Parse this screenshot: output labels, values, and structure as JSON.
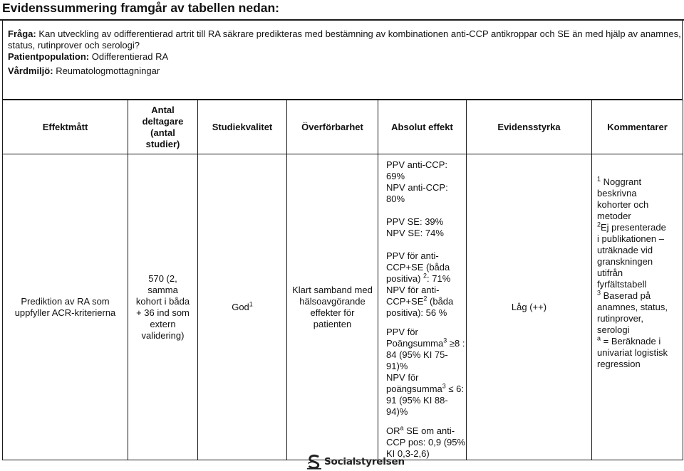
{
  "title": "Evidenssummering framgår av tabellen nedan:",
  "info": {
    "question_label": "Fråga:",
    "question_text": " Kan utveckling av odifferentierad artrit till RA säkrare predikteras med bestämning av kombinationen anti-CCP antikroppar och SE än med hjälp av anamnes, status, rutinprover och serologi?",
    "population_label": "Patientpopulation:",
    "population_value": " Odifferentierad RA",
    "setting_label": "Vårdmiljö:",
    "setting_value": " Reumatologmottagningar"
  },
  "table": {
    "headers": {
      "effektmatt": "Effektmått",
      "antal_1": "Antal",
      "antal_2": "deltagare",
      "antal_3": "(antal",
      "antal_4": "studier)",
      "studiekvalitet": "Studiekvalitet",
      "overforbarhet": "Överförbarhet",
      "absolut_effekt": "Absolut effekt",
      "evidensstyrka": "Evidensstyrka",
      "kommentarer": "Kommentarer"
    },
    "row": {
      "effektmatt_1": "Prediktion av RA som",
      "effektmatt_2": "uppfyller ACR-kriterierna",
      "antal_1": "570 (2,",
      "antal_2": "samma",
      "antal_3": "kohort i båda",
      "antal_4": "+ 36 ind som",
      "antal_5": "extern",
      "antal_6": "validering)",
      "studiekvalitet": "God",
      "studiekvalitet_sup": "1",
      "overforbarhet_1": "Klart samband med",
      "overforbarhet_2": "hälsoavgörande",
      "overforbarhet_3": "effekter för",
      "overforbarhet_4": "patienten",
      "abs": {
        "l1": "PPV anti-CCP: 69%",
        "l2": "NPV anti-CCP: 80%",
        "l3": "PPV SE: 39%",
        "l4": "NPV SE: 74%",
        "l5": "PPV för anti-",
        "l6": "CCP+SE (båda",
        "l7a": "positiva) ",
        "l7sup": "2",
        "l7b": ": 71%",
        "l8": "NPV för anti-",
        "l9a": "CCP+SE",
        "l9sup": "2",
        "l9b": " (båda",
        "l10": "positiva): 56 %",
        "l11": "PPV för",
        "l12a": "Poängsumma",
        "l12sup": "3",
        "l12b": " ≥8 :",
        "l13": "84 (95% KI 75-91)%",
        "l14": "NPV för",
        "l15a": "poängsumma",
        "l15sup": "3",
        "l15b": " ≤ 6:",
        "l16": "91 (95% KI 88-94)%",
        "l17a": "OR",
        "l17sup": "a",
        "l17b": " SE om anti-",
        "l18": "CCP pos: 0,9 (95%",
        "l19": "KI 0,3-2,6)"
      },
      "evidensstyrka": "Låg (++)",
      "kommentarer": {
        "c1sup": "1",
        "c1": " Noggrant",
        "c2": "beskrivna",
        "c3": "kohorter och",
        "c4": "metoder",
        "c5sup": "2",
        "c5": "Ej presenterade",
        "c6": "i publikationen –",
        "c7": "uträknade vid",
        "c8": "granskningen",
        "c9": "utifrån",
        "c10": "fyrfältstabell",
        "c11sup": "3",
        "c11": " Baserad på",
        "c12": "anamnes, status,",
        "c13": "rutinprover,",
        "c14": "serologi",
        "c15sup": "a",
        "c15": " = Beräknade i",
        "c16": "univariat logistisk",
        "c17": "regression"
      }
    }
  },
  "footer": {
    "logo_text": "Socialstyrelsen",
    "logo_icon": "socialstyrelsen-logo-icon"
  }
}
